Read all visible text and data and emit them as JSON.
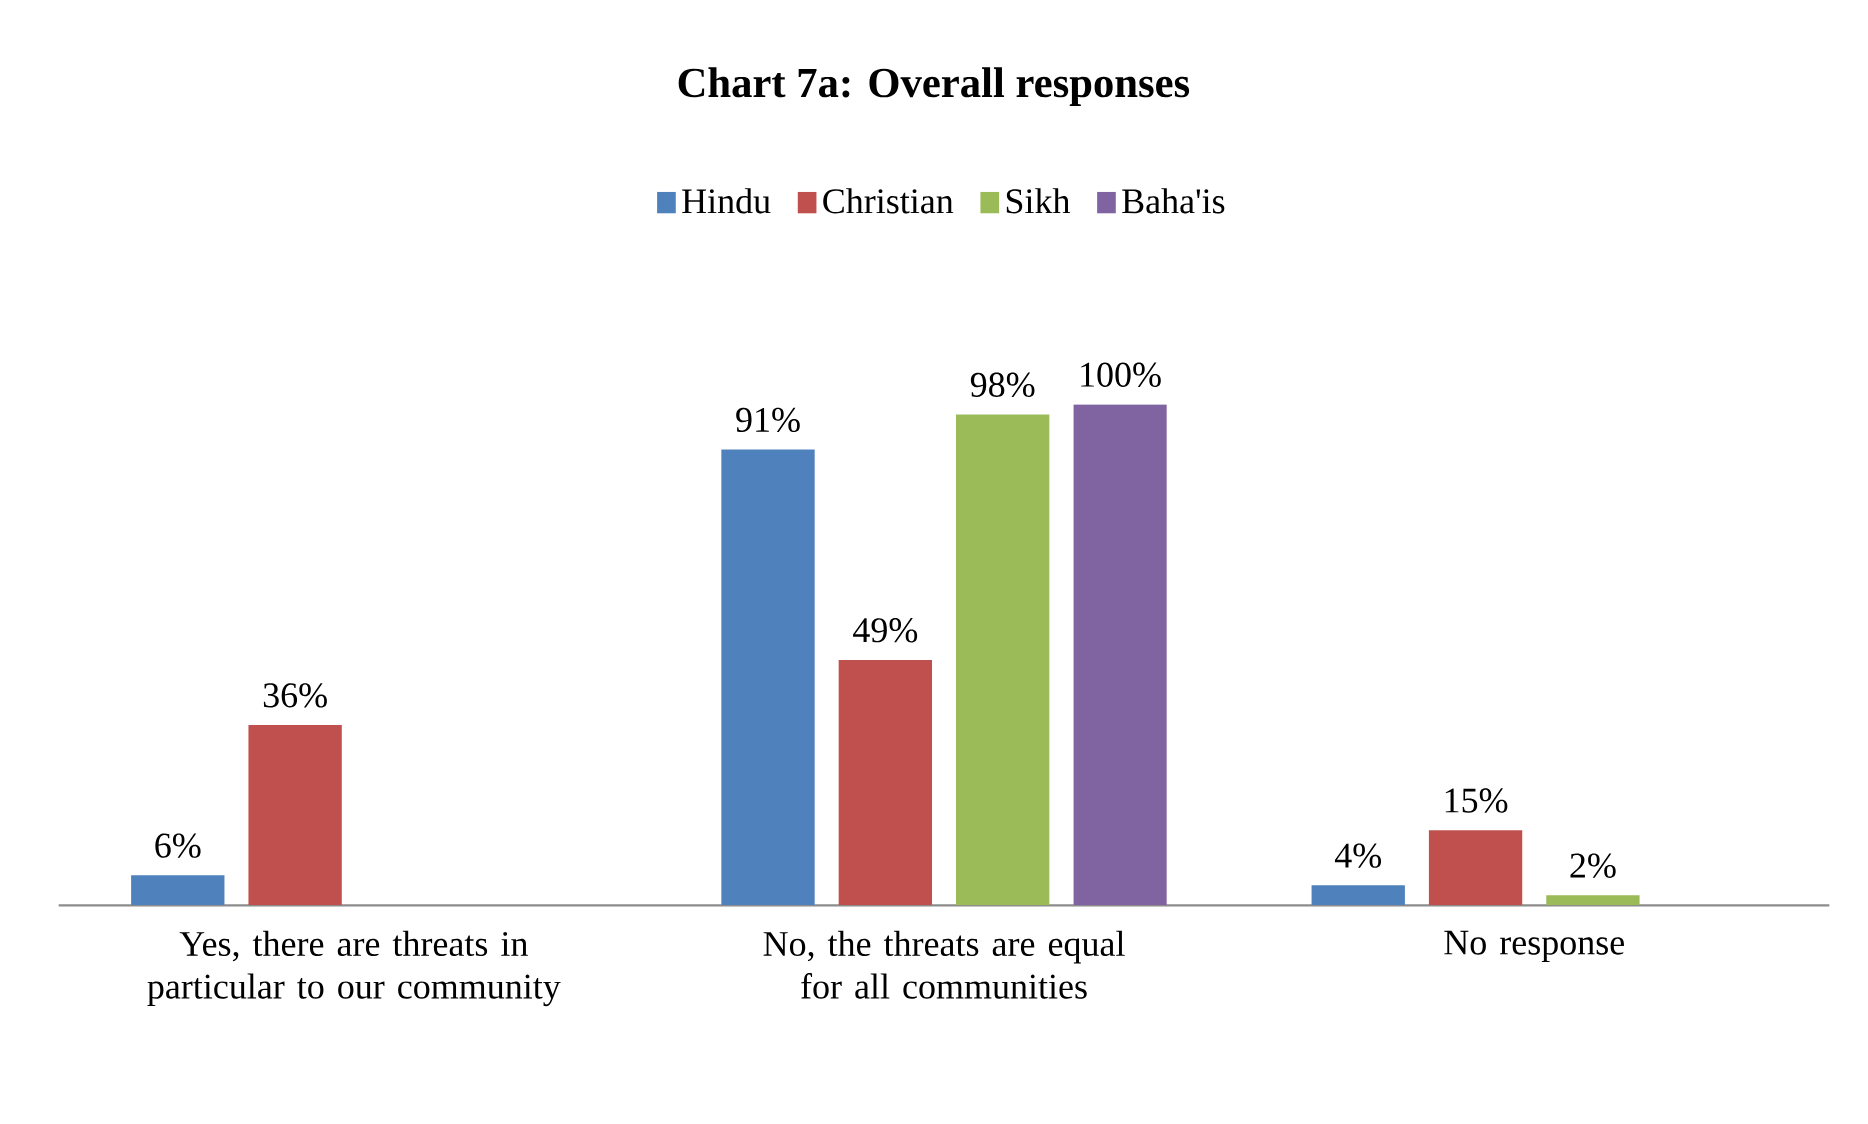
{
  "chart_data": {
    "type": "bar",
    "title": "Chart 7a: Overall responses",
    "categories": [
      "Yes, there are threats in particular to our community",
      "No, the threats are equal for all communities",
      "No response"
    ],
    "series": [
      {
        "name": "Hindu",
        "color": "#4f81bd",
        "values": [
          6,
          91,
          4
        ],
        "value_labels": [
          "6%",
          "91%",
          "4%"
        ]
      },
      {
        "name": "Christian",
        "color": "#c0504d",
        "values": [
          36,
          49,
          15
        ],
        "value_labels": [
          "36%",
          "49%",
          "15%"
        ]
      },
      {
        "name": "Sikh",
        "color": "#9bbb59",
        "values": [
          null,
          98,
          2
        ],
        "value_labels": [
          null,
          "98%",
          "2%"
        ]
      },
      {
        "name": "Baha'is",
        "color": "#8064a2",
        "values": [
          null,
          100,
          null
        ],
        "value_labels": [
          null,
          "100%",
          null
        ]
      }
    ],
    "legend": "top"
  }
}
